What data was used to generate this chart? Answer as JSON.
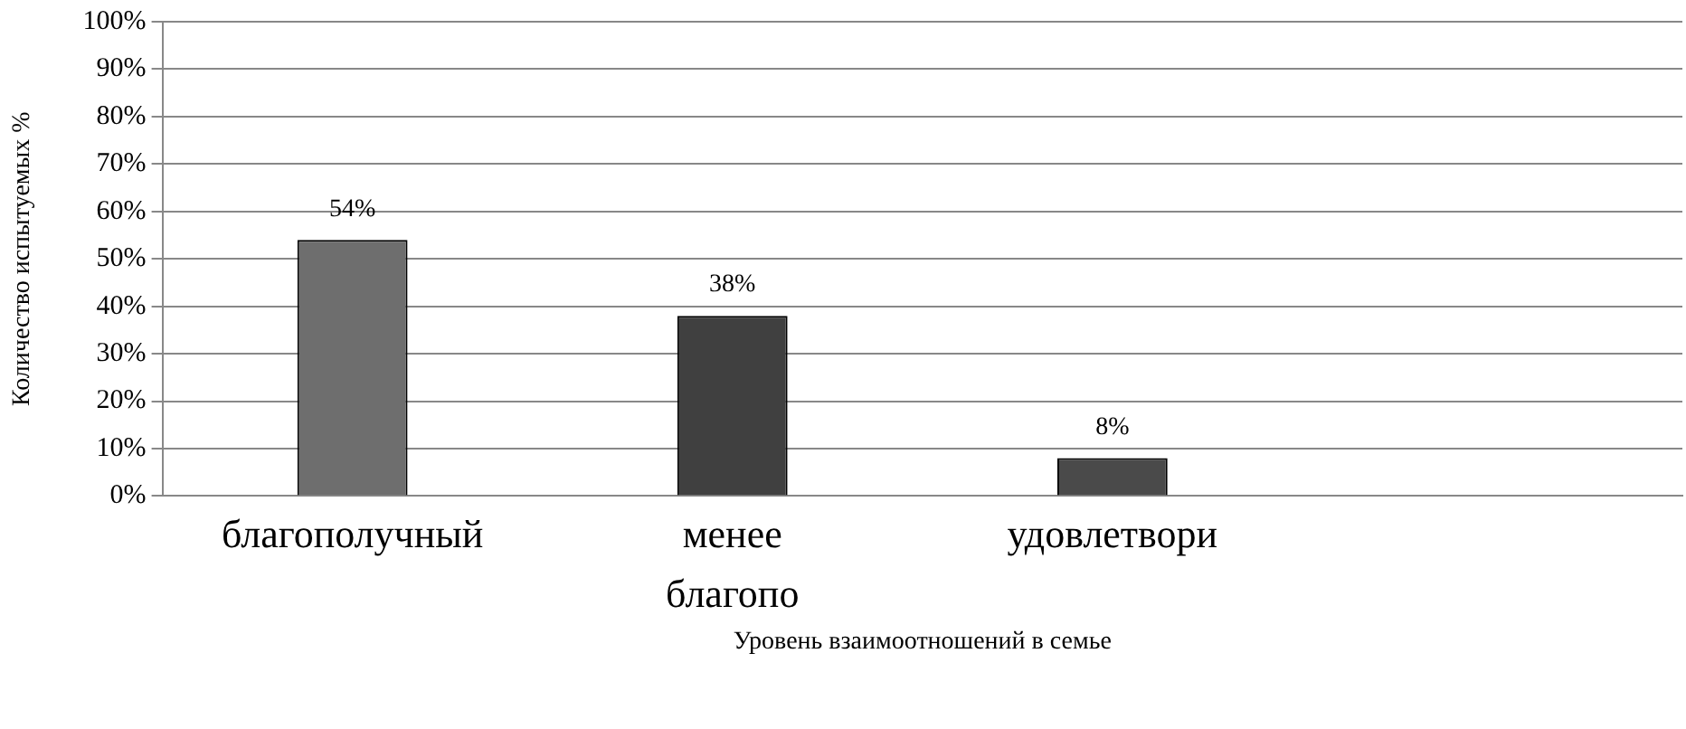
{
  "chart_data": {
    "type": "bar",
    "xlabel": "Уровень взаимоотношений в семье",
    "ylabel": "Количество испытуемых %",
    "categories": [
      "благополучный",
      "менее благопо",
      "удовлетвори",
      null
    ],
    "values": [
      54,
      38,
      8,
      null
    ],
    "colors": [
      "#6e6e6e",
      "#404040",
      "#4a4a4a",
      null
    ],
    "ylim": [
      0,
      100
    ],
    "yticks": [
      {
        "value": 0,
        "label": "0%"
      },
      {
        "value": 10,
        "label": "10%"
      },
      {
        "value": 20,
        "label": "20%"
      },
      {
        "value": 30,
        "label": "30%"
      },
      {
        "value": 40,
        "label": "40%"
      },
      {
        "value": 50,
        "label": "50%"
      },
      {
        "value": 60,
        "label": "60%"
      },
      {
        "value": 70,
        "label": "70%"
      },
      {
        "value": 80,
        "label": "80%"
      },
      {
        "value": 90,
        "label": "90%"
      },
      {
        "value": 100,
        "label": "100%"
      }
    ],
    "value_labels": [
      "54%",
      "38%",
      "8%",
      null
    ],
    "grid": "y",
    "legend": false
  }
}
